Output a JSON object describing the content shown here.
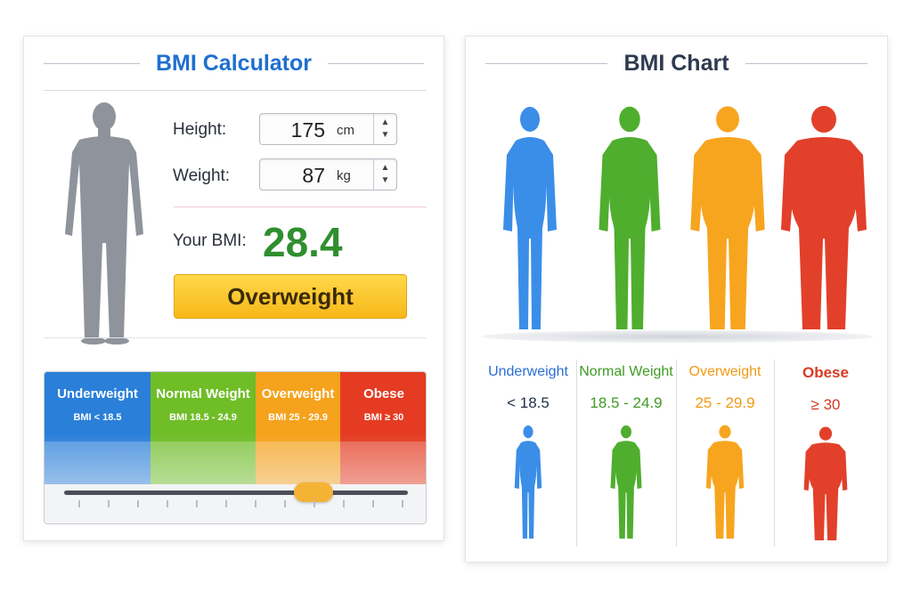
{
  "calculator": {
    "title": "BMI Calculator",
    "height_label": "Height:",
    "height_value": "175",
    "height_unit": "cm",
    "weight_label": "Weight:",
    "weight_value": "87",
    "weight_unit": "kg",
    "bmi_label": "Your BMI:",
    "bmi_value": "28.4",
    "result": "Overweight",
    "gauge_value": 28.4,
    "scale": [
      {
        "name": "Underweight",
        "range": "BMI < 18.5",
        "color": "#2a7fd9"
      },
      {
        "name": "Normal Weight",
        "range": "BMI 18.5 - 24.9",
        "color": "#6fbd27"
      },
      {
        "name": "Overweight",
        "range": "BMI 25 - 29.9",
        "color": "#f5a21c"
      },
      {
        "name": "Obese",
        "range": "BMI ≥ 30",
        "color": "#e53b22"
      }
    ]
  },
  "chart": {
    "title": "BMI Chart",
    "categories": [
      {
        "name": "Underweight",
        "range": "< 18.5",
        "color": "#2a6ed4",
        "body_color": "#3b8ee8"
      },
      {
        "name": "Normal Weight",
        "range": "18.5 - 24.9",
        "color": "#3f9a24",
        "body_color": "#4fae2e"
      },
      {
        "name": "Overweight",
        "range": "25 - 29.9",
        "color": "#ef9a14",
        "body_color": "#f7a51f"
      },
      {
        "name": "Obese",
        "range": "≥ 30",
        "color": "#d83a22",
        "body_color": "#e2402a"
      }
    ]
  }
}
